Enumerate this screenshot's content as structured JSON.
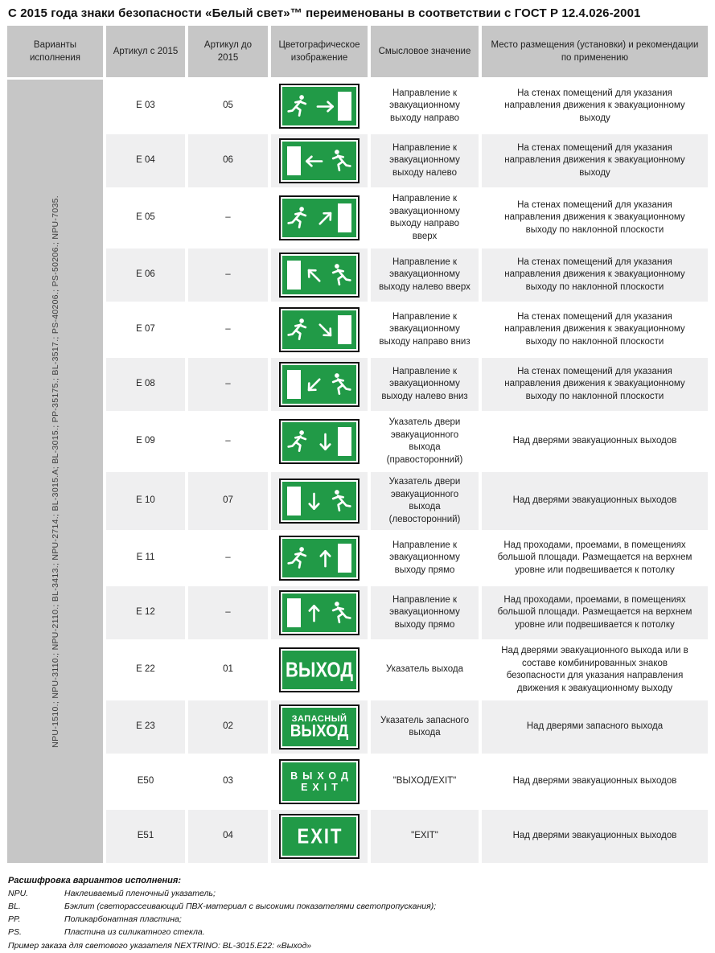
{
  "page": {
    "title": "С 2015 года знаки безопасности «Белый свет»™ переименованы в соответствии с ГОСТ Р 12.4.026-2001"
  },
  "colors": {
    "sign_green": "#219a47",
    "header_gray": "#c6c6c6",
    "row_alt_gray": "#efeff0",
    "sign_border_black": "#101010",
    "sign_inner_ring_white": "#ffffff"
  },
  "table": {
    "headers": [
      "Варианты исполнения",
      "Артикул с 2015",
      "Артикул до 2015",
      "Цветографическое изображение",
      "Смысловое значение",
      "Место размещения (установки) и рекомендации по применению"
    ],
    "variants_codes": "NPU-1510.; NPU-3110.; NPU-2110.; BL-3413.; NPU-2714.; BL-3015.A; BL-3015.; PP-35175.; BL-3517.; PS-40206.; PS-50206.; NPU-7035.",
    "rows": [
      {
        "article_2015": "Е 03",
        "article_before_2015": "05",
        "sign": {
          "kind": "pictogram",
          "elements": [
            "man",
            "arrow",
            "door"
          ],
          "arrow": "right",
          "man_facing": "right"
        },
        "meaning": "Направление к эвакуационному выходу направо",
        "placement": "На стенах помещений для указания направления движения к эвакуационному выходу"
      },
      {
        "article_2015": "Е 04",
        "article_before_2015": "06",
        "sign": {
          "kind": "pictogram",
          "elements": [
            "door",
            "arrow",
            "man"
          ],
          "arrow": "left",
          "man_facing": "left"
        },
        "meaning": "Направление к эвакуационному выходу налево",
        "placement": "На стенах помещений для указания направления движения к эвакуационному выходу"
      },
      {
        "article_2015": "Е 05",
        "article_before_2015": "–",
        "sign": {
          "kind": "pictogram",
          "elements": [
            "man",
            "arrow",
            "door"
          ],
          "arrow": "up-right",
          "man_facing": "right"
        },
        "meaning": "Направление к эвакуационному выходу направо вверх",
        "placement": "На стенах помещений для указания направления движения к эвакуационному выходу по наклонной плоскости"
      },
      {
        "article_2015": "Е 06",
        "article_before_2015": "–",
        "sign": {
          "kind": "pictogram",
          "elements": [
            "door",
            "arrow",
            "man"
          ],
          "arrow": "up-left",
          "man_facing": "left"
        },
        "meaning": "Направление к эвакуационному выходу налево вверх",
        "placement": "На стенах помещений для указания направления движения к эвакуационному выходу по наклонной плоскости"
      },
      {
        "article_2015": "Е 07",
        "article_before_2015": "–",
        "sign": {
          "kind": "pictogram",
          "elements": [
            "man",
            "arrow",
            "door"
          ],
          "arrow": "down-right",
          "man_facing": "right"
        },
        "meaning": "Направление к эвакуационному выходу направо вниз",
        "placement": "На стенах помещений для указания направления движения к эвакуационному выходу по наклонной плоскости"
      },
      {
        "article_2015": "Е 08",
        "article_before_2015": "–",
        "sign": {
          "kind": "pictogram",
          "elements": [
            "door",
            "arrow",
            "man"
          ],
          "arrow": "down-left",
          "man_facing": "left"
        },
        "meaning": "Направление к эвакуационному выходу налево вниз",
        "placement": "На стенах помещений для указания направления движения к эвакуационному выходу по наклонной плоскости"
      },
      {
        "article_2015": "Е 09",
        "article_before_2015": "–",
        "sign": {
          "kind": "pictogram",
          "elements": [
            "man",
            "arrow",
            "door"
          ],
          "arrow": "down",
          "man_facing": "right"
        },
        "meaning": "Указатель двери эвакуационного выхода (правосторонний)",
        "placement": "Над дверями эвакуационных выходов"
      },
      {
        "article_2015": "Е 10",
        "article_before_2015": "07",
        "sign": {
          "kind": "pictogram",
          "elements": [
            "door",
            "arrow",
            "man"
          ],
          "arrow": "down",
          "man_facing": "left"
        },
        "meaning": "Указатель двери эвакуационного выхода (левосторонний)",
        "placement": "Над дверями эвакуационных выходов"
      },
      {
        "article_2015": "Е 11",
        "article_before_2015": "–",
        "sign": {
          "kind": "pictogram",
          "elements": [
            "man",
            "arrow",
            "door"
          ],
          "arrow": "up",
          "man_facing": "right"
        },
        "meaning": "Направление к эвакуационному выходу прямо",
        "placement": "Над проходами, проемами, в помещениях большой площади. Размещается на верхнем уровне или подвешивается к потолку"
      },
      {
        "article_2015": "Е 12",
        "article_before_2015": "–",
        "sign": {
          "kind": "pictogram",
          "elements": [
            "door",
            "arrow",
            "man"
          ],
          "arrow": "up",
          "man_facing": "left"
        },
        "meaning": "Направление к эвакуационному выходу прямо",
        "placement": "Над проходами, проемами, в помещениях большой площади. Размещается на верхнем уровне или подвешивается к потолку"
      },
      {
        "article_2015": "Е 22",
        "article_before_2015": "01",
        "sign": {
          "kind": "text",
          "lines": [
            {
              "text": "ВЫХОД",
              "size": "xl"
            }
          ]
        },
        "meaning": "Указатель выхода",
        "placement": "Над дверями эвакуационного выхода или в составе комбинированных знаков безопасности для указания направления движения к эвакуационному выходу"
      },
      {
        "article_2015": "Е 23",
        "article_before_2015": "02",
        "sign": {
          "kind": "text",
          "lines": [
            {
              "text": "ЗАПАСНЫЙ",
              "size": "sm"
            },
            {
              "text": "ВЫХОД",
              "size": "lg"
            }
          ]
        },
        "meaning": "Указатель запасного выхода",
        "placement": "Над дверями запасного выхода"
      },
      {
        "article_2015": "Е50",
        "article_before_2015": "03",
        "sign": {
          "kind": "text",
          "lines": [
            {
              "text": "ВЫХОД",
              "size": "md",
              "spaced": true
            },
            {
              "text": "EXIT",
              "size": "md",
              "spaced": true
            }
          ]
        },
        "meaning": "\"ВЫХОД/EXIT\"",
        "placement": "Над дверями эвакуационных выходов"
      },
      {
        "article_2015": "Е51",
        "article_before_2015": "04",
        "sign": {
          "kind": "text",
          "lines": [
            {
              "text": "EXIT",
              "size": "xl",
              "spaced": true
            }
          ]
        },
        "meaning": "\"EXIT\"",
        "placement": "Над дверями эвакуационных выходов"
      }
    ]
  },
  "footer": {
    "legend_title": "Расшифровка вариантов исполнения:",
    "legend": [
      {
        "term": "NPU.",
        "definition": "Наклеиваемый пленочный указатель;"
      },
      {
        "term": "BL.",
        "definition": "Бэклит (светорассеивающий ПВХ-материал с высокими показателями светопропускания);"
      },
      {
        "term": "PP.",
        "definition": "Поликарбонатная пластина;"
      },
      {
        "term": "PS.",
        "definition": "Пластина из силикатного стекла."
      }
    ],
    "example": "Пример заказа для светового указателя NEXTRINO: BL-3015.E22: «Выход»"
  }
}
